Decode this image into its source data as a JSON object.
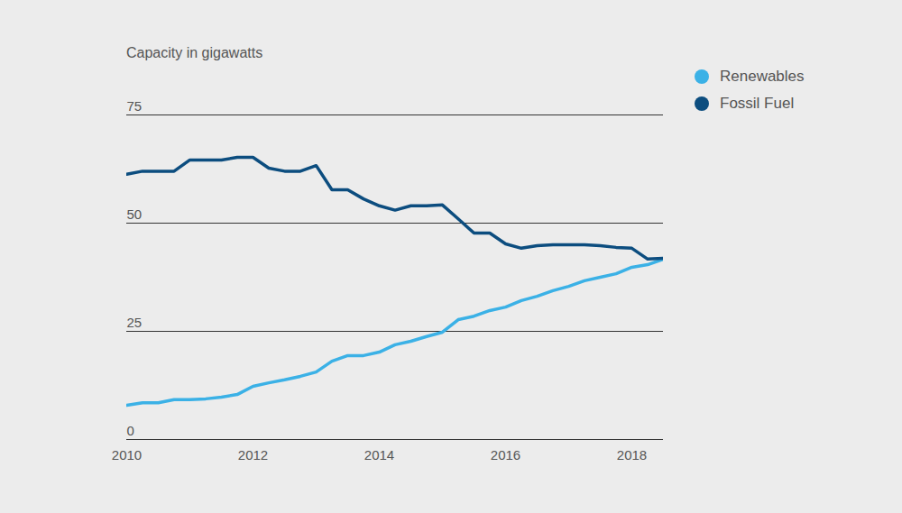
{
  "chart_data": {
    "type": "line",
    "y_label": "Capacity in gigawatts",
    "x": [
      2010,
      2010.25,
      2010.5,
      2010.75,
      2011,
      2011.25,
      2011.5,
      2011.75,
      2012,
      2012.25,
      2012.5,
      2012.75,
      2013,
      2013.25,
      2013.5,
      2013.75,
      2014,
      2014.25,
      2014.5,
      2014.75,
      2015,
      2015.25,
      2015.5,
      2015.75,
      2016,
      2016.25,
      2016.5,
      2016.75,
      2017,
      2017.25,
      2017.5,
      2017.75,
      2018,
      2018.25,
      2018.5
    ],
    "series": [
      {
        "name": "Renewables",
        "color": "#3bb1e6",
        "values": [
          7.9,
          8.5,
          8.5,
          9.2,
          9.2,
          9.4,
          9.8,
          10.4,
          12.3,
          13.1,
          13.8,
          14.6,
          15.6,
          18.1,
          19.4,
          19.4,
          20.2,
          21.9,
          22.7,
          23.8,
          24.8,
          27.7,
          28.5,
          29.8,
          30.6,
          32.1,
          33.1,
          34.4,
          35.4,
          36.7,
          37.5,
          38.3,
          39.8,
          40.4,
          41.7
        ]
      },
      {
        "name": "Fossil Fuel",
        "color": "#0c4d7f",
        "values": [
          61.3,
          62,
          62,
          62,
          64.6,
          64.6,
          64.6,
          65.2,
          65.2,
          62.7,
          62,
          62,
          63.3,
          57.7,
          57.7,
          55.6,
          54,
          53,
          54,
          54,
          54.2,
          51,
          47.7,
          47.7,
          45.2,
          44.2,
          44.8,
          45,
          45,
          45,
          44.8,
          44.4,
          44.2,
          41.7,
          41.9
        ]
      }
    ],
    "xlim": [
      2010,
      2018.5
    ],
    "ylim": [
      0,
      75
    ],
    "xticks": [
      2010,
      2012,
      2014,
      2016,
      2018
    ],
    "yticks": [
      0,
      25,
      50,
      75
    ],
    "grid": true,
    "legend": "top-right"
  }
}
